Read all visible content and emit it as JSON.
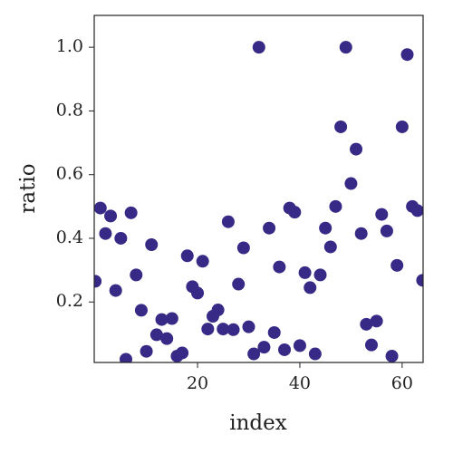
{
  "chart_data": {
    "type": "scatter",
    "x_label": "index",
    "y_label": "ratio",
    "color": "#362a86",
    "x": [
      0,
      1,
      2,
      3,
      4,
      5,
      6,
      7,
      8,
      9,
      10,
      11,
      12,
      13,
      14,
      15,
      16,
      17,
      18,
      19,
      20,
      21,
      22,
      23,
      24,
      25,
      26,
      27,
      28,
      29,
      30,
      31,
      32,
      33,
      34,
      35,
      36,
      37,
      38,
      39,
      40,
      41,
      42,
      43,
      44,
      45,
      46,
      47,
      48,
      49,
      50,
      51,
      52,
      53,
      54,
      55,
      56,
      57,
      58,
      59,
      60,
      61,
      62,
      63,
      64
    ],
    "values": [
      0.265,
      0.495,
      0.415,
      0.47,
      0.236,
      0.4,
      0.02,
      0.48,
      0.285,
      0.174,
      0.045,
      0.38,
      0.097,
      0.145,
      0.085,
      0.148,
      0.03,
      0.04,
      0.345,
      0.248,
      0.228,
      0.328,
      0.115,
      0.155,
      0.175,
      0.115,
      0.452,
      0.113,
      0.256,
      0.37,
      0.122,
      0.037,
      1.0,
      0.058,
      0.432,
      0.104,
      0.31,
      0.05,
      0.495,
      0.482,
      0.063,
      0.292,
      0.245,
      0.037,
      0.285,
      0.432,
      0.373,
      0.5,
      0.75,
      1.0,
      0.572,
      0.68,
      0.415,
      0.13,
      0.065,
      0.14,
      0.475,
      0.423,
      0.03,
      0.315,
      0.75,
      0.977,
      0.5,
      0.487,
      0.268
    ],
    "xlim": [
      -0.2,
      64.1
    ],
    "ylim": [
      0.01,
      1.1
    ],
    "xticks": [
      20,
      40,
      60
    ],
    "yticks": [
      0.2,
      0.4,
      0.6,
      0.8,
      {
        "value": 1,
        "label": "1.0"
      }
    ]
  }
}
